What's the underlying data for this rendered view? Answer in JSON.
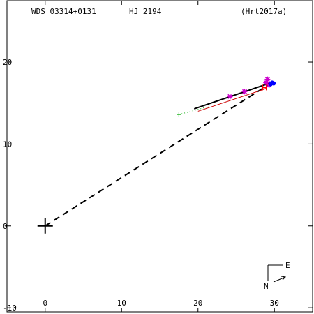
{
  "header": {
    "wds_id": "WDS 03314+0131",
    "discoverer": "HJ 2194",
    "reference": "(Hrt2017a)"
  },
  "compass": {
    "east_label": "E",
    "north_label": "N"
  },
  "colors": {
    "axes": "#000000",
    "orbit": "#000000",
    "fit_line": "#cc0000",
    "early_obs": "#00aa00",
    "measures": "#cc00cc",
    "recent_obs": "#0000ff",
    "speckle": "#ff0000"
  },
  "chart_data": {
    "type": "scatter",
    "xlim": [
      -5,
      35
    ],
    "ylim": [
      -10.5,
      27.5
    ],
    "x_ticks": [
      0,
      10,
      20,
      30
    ],
    "y_ticks": [
      -10,
      0,
      10,
      20
    ],
    "x_tick_labels": [
      "0",
      "10",
      "20",
      "30"
    ],
    "y_tick_labels": [
      "-10",
      "0",
      "10",
      "20"
    ],
    "primary": {
      "x": 0,
      "y": 0,
      "marker": "plus"
    },
    "dashed_line": {
      "from": [
        0,
        0
      ],
      "to": [
        29.5,
        17.4
      ]
    },
    "solid_line": {
      "from": [
        19.5,
        14.3
      ],
      "to": [
        29.6,
        17.5
      ]
    },
    "red_line": {
      "from": [
        20,
        14.0
      ],
      "to": [
        29.0,
        16.8
      ]
    },
    "dotted_track": {
      "from": [
        17.5,
        13.6
      ],
      "to": [
        21.5,
        14.6
      ]
    },
    "series": [
      {
        "marker": "plus",
        "color_key": "early_obs",
        "points": [
          [
            17.5,
            13.6
          ]
        ]
      },
      {
        "marker": "star",
        "color_key": "measures",
        "points": [
          [
            24.2,
            15.8
          ],
          [
            26.1,
            16.4
          ],
          [
            28.9,
            17.5
          ],
          [
            29.1,
            17.9
          ],
          [
            29.3,
            17.2
          ]
        ]
      },
      {
        "marker": "dot",
        "color_key": "recent_obs",
        "points": [
          [
            29.5,
            17.3
          ],
          [
            29.7,
            17.5
          ],
          [
            29.9,
            17.4
          ]
        ]
      },
      {
        "marker": "cross",
        "color_key": "speckle",
        "points": [
          [
            28.7,
            16.9
          ]
        ]
      }
    ]
  }
}
